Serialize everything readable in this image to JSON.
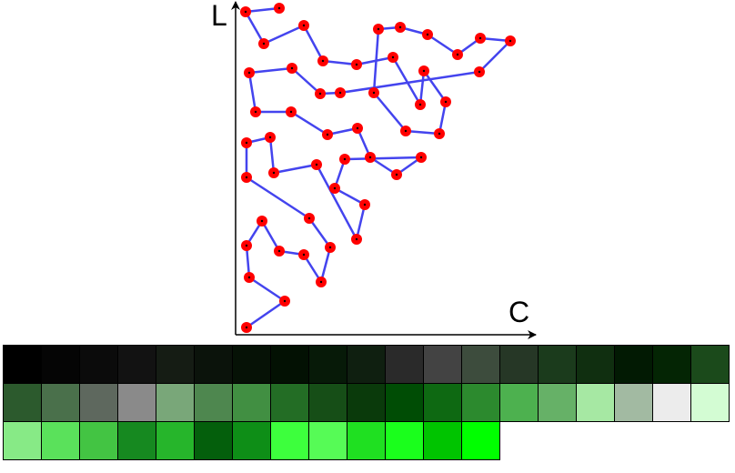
{
  "axes": {
    "x_label": "C",
    "y_label": "L"
  },
  "colors": {
    "path": "#4444ee",
    "node": "#ff0000",
    "axis": "#000000"
  },
  "path_points": [
    [
      307,
      9
    ],
    [
      270,
      13
    ],
    [
      290,
      48
    ],
    [
      334,
      28
    ],
    [
      355,
      67
    ],
    [
      392,
      71
    ],
    [
      432,
      63
    ],
    [
      462,
      115
    ],
    [
      466,
      78
    ],
    [
      490,
      112
    ],
    [
      483,
      147
    ],
    [
      446,
      144
    ],
    [
      411,
      102
    ],
    [
      416,
      32
    ],
    [
      440,
      30
    ],
    [
      470,
      38
    ],
    [
      503,
      60
    ],
    [
      528,
      42
    ],
    [
      561,
      45
    ],
    [
      527,
      79
    ],
    [
      374,
      102
    ],
    [
      352,
      103
    ],
    [
      321,
      75
    ],
    [
      274,
      80
    ],
    [
      281,
      123
    ],
    [
      320,
      123
    ],
    [
      360,
      148
    ],
    [
      393,
      141
    ],
    [
      407,
      173
    ],
    [
      436,
      192
    ],
    [
      463,
      173
    ],
    [
      379,
      175
    ],
    [
      368,
      207
    ],
    [
      401,
      225
    ],
    [
      392,
      263
    ],
    [
      348,
      181
    ],
    [
      301,
      190
    ],
    [
      297,
      151
    ],
    [
      271,
      157
    ],
    [
      271,
      195
    ],
    [
      340,
      240
    ],
    [
      363,
      272
    ],
    [
      353,
      310
    ],
    [
      334,
      280
    ],
    [
      307,
      276
    ],
    [
      288,
      243
    ],
    [
      271,
      270
    ],
    [
      274,
      305
    ],
    [
      313,
      331
    ],
    [
      271,
      360
    ]
  ],
  "swatch_rows": [
    [
      "#000000",
      "#050505",
      "#0b0b0b",
      "#121212",
      "#151c14",
      "#0b130b",
      "#061206",
      "#031103",
      "#071a08",
      "#0f1f10",
      "#2a2a2a",
      "#434343",
      "#3d4c3d",
      "#263726",
      "#1b3b1c",
      "#102f10",
      "#021a03",
      "#042504",
      "#1b4a1b"
    ],
    [
      "#2c5a2d",
      "#4a704b",
      "#5e685e",
      "#8a8a8a",
      "#79a779",
      "#4e874f",
      "#418f42",
      "#236d25",
      "#164e17",
      "#0a3a0b",
      "#004d05",
      "#0e6912",
      "#2c8a2e",
      "#4db14f",
      "#66b167",
      "#a6e8a3",
      "#a2baa2",
      "#ececec",
      "#d3fcd3"
    ],
    [
      "#87ea86",
      "#5ae15b",
      "#43c443",
      "#168920",
      "#26b52b",
      "#045f0c",
      "#0e8e17",
      "#3dff3d",
      "#56fb56",
      "#1fe021",
      "#1aff1c",
      "#00c400",
      "#00ff00"
    ]
  ]
}
